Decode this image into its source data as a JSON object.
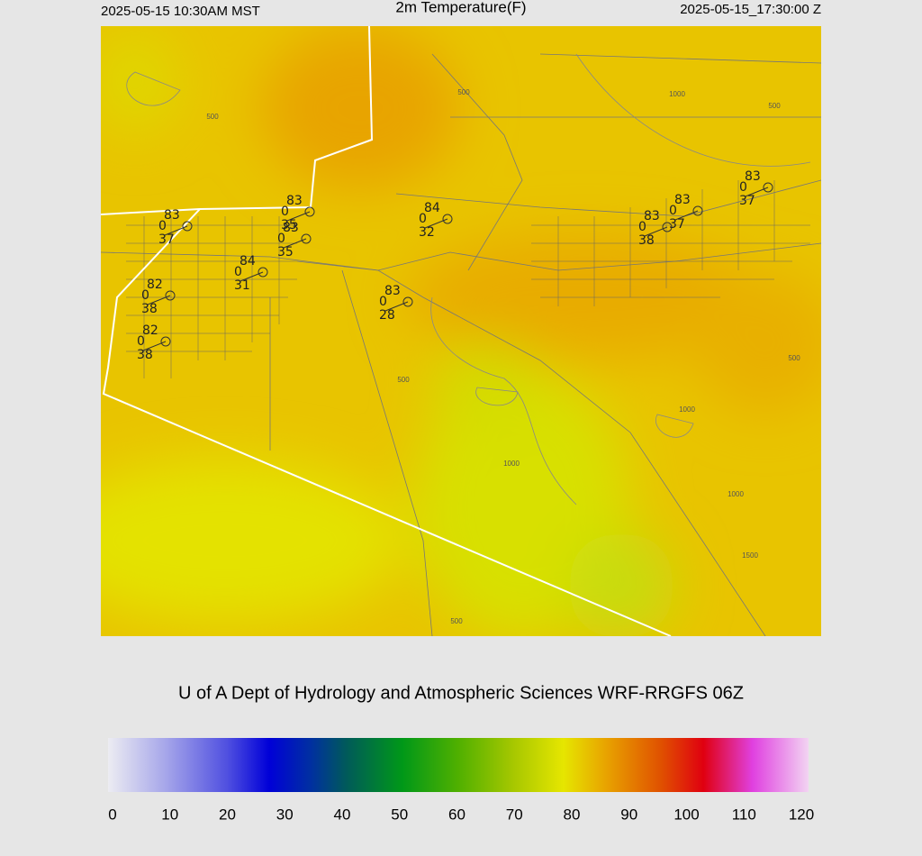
{
  "header": {
    "left": "2025-05-15 10:30AM MST",
    "title": "2m Temperature(F)",
    "right": "2025-05-15_17:30:00 Z"
  },
  "stations": [
    {
      "temp": "83",
      "wind": "0",
      "dew": "37"
    },
    {
      "temp": "83",
      "wind": "0",
      "dew": "35"
    },
    {
      "temp": "83",
      "wind": "0",
      "dew": "35"
    },
    {
      "temp": "84",
      "wind": "0",
      "dew": "31"
    },
    {
      "temp": "82",
      "wind": "0",
      "dew": "38"
    },
    {
      "temp": "82",
      "wind": "0",
      "dew": "38"
    },
    {
      "temp": "84",
      "wind": "0",
      "dew": "32"
    },
    {
      "temp": "83",
      "wind": "0",
      "dew": "28"
    },
    {
      "temp": "83",
      "wind": "0",
      "dew": "38"
    },
    {
      "temp": "83",
      "wind": "0",
      "dew": "37"
    },
    {
      "temp": "83",
      "wind": "0",
      "dew": "37"
    }
  ],
  "contour_labels": [
    "500",
    "500",
    "500",
    "500",
    "500",
    "500",
    "1000",
    "1000",
    "1000",
    "1000",
    "1500"
  ],
  "credit": "U of A Dept of Hydrology and Atmospheric Sciences WRF-RRGFS 06Z",
  "colorbar": {
    "ticks": [
      "0",
      "10",
      "20",
      "30",
      "40",
      "50",
      "60",
      "70",
      "80",
      "90",
      "100",
      "110",
      "120"
    ]
  }
}
